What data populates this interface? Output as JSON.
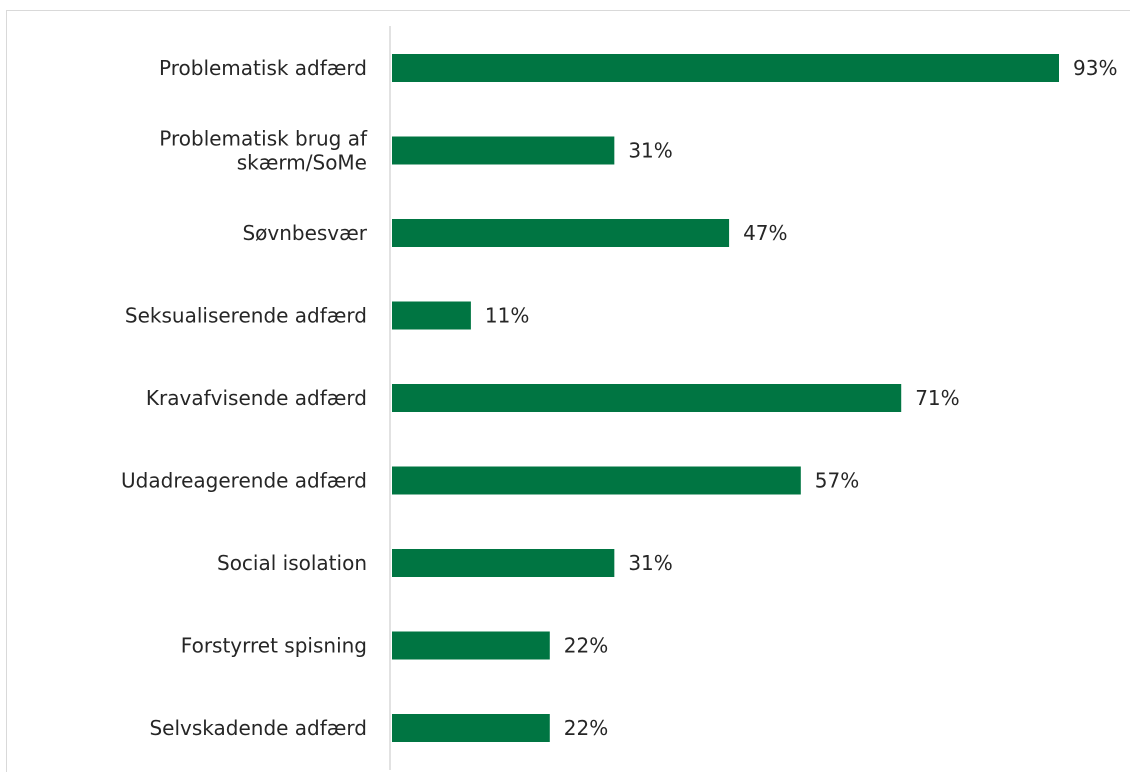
{
  "chart_data": {
    "type": "bar",
    "orientation": "horizontal",
    "title": "",
    "xlabel": "",
    "ylabel": "",
    "categories": [
      [
        "Problematisk adfærd"
      ],
      [
        "Problematisk brug af",
        "skærm/SoMe"
      ],
      [
        "Søvnbesvær"
      ],
      [
        "Seksualiserende adfærd"
      ],
      [
        "Kravafvisende adfærd"
      ],
      [
        "Udadreagerende adfærd"
      ],
      [
        "Social isolation"
      ],
      [
        "Forstyrret spisning"
      ],
      [
        "Selvskadende adfærd"
      ]
    ],
    "values": [
      93,
      31,
      47,
      11,
      71,
      57,
      31,
      22,
      22
    ],
    "value_labels": [
      "93%",
      "31%",
      "47%",
      "11%",
      "71%",
      "57%",
      "31%",
      "22%",
      "22%"
    ],
    "xlim": [
      0,
      100
    ],
    "grid": false,
    "legend": "none",
    "colors": {
      "bar": "#007542",
      "axis": "#d9d9d9",
      "frame": "#d9d9d9",
      "text": "#262626"
    }
  }
}
